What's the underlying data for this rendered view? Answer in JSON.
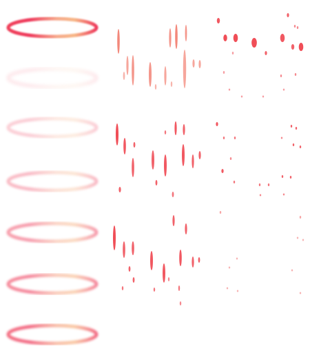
{
  "sheet": {
    "description_colors": {
      "ring_red": "#f0405a",
      "ring_peach": "#f6b08a",
      "streak_red": "#ee3b45",
      "streak_orange": "#f38a5a",
      "background": "#ffffff"
    },
    "rings": [
      {
        "name": "ring-frame-1",
        "opacity": 1.0,
        "blur": 1
      },
      {
        "name": "ring-frame-2",
        "opacity": 0.12,
        "blur": 3
      },
      {
        "name": "ring-frame-3",
        "opacity": 0.25,
        "blur": 2
      },
      {
        "name": "ring-frame-4",
        "opacity": 0.35,
        "blur": 2
      },
      {
        "name": "ring-frame-5",
        "opacity": 0.5,
        "blur": 2
      },
      {
        "name": "ring-frame-6",
        "opacity": 0.6,
        "blur": 2
      },
      {
        "name": "ring-frame-7",
        "opacity": 0.75,
        "blur": 2
      }
    ]
  }
}
